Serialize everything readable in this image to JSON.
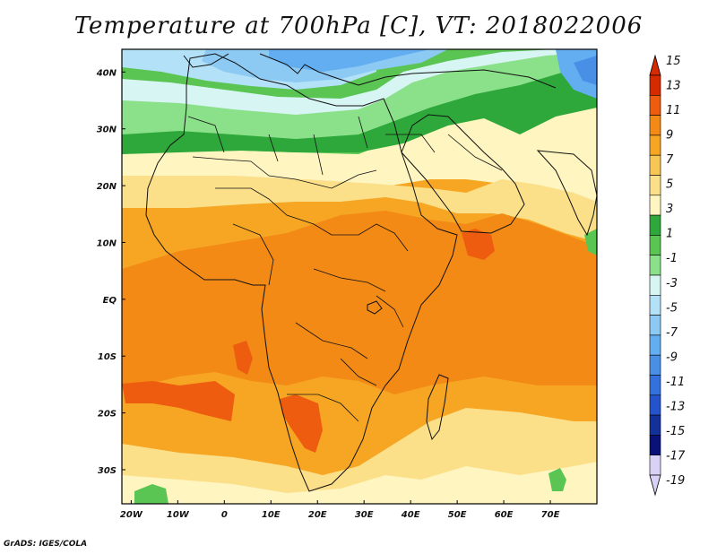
{
  "title": "Temperature at 700hPa [C], VT: 2018022006",
  "credit": "GrADS: IGES/COLA",
  "map": {
    "lat_range": [
      -36,
      44
    ],
    "lon_range": [
      -22,
      80
    ],
    "lat_ticks": [
      {
        "lat": 40,
        "label": "40N"
      },
      {
        "lat": 30,
        "label": "30N"
      },
      {
        "lat": 20,
        "label": "20N"
      },
      {
        "lat": 10,
        "label": "10N"
      },
      {
        "lat": 0,
        "label": "EQ"
      },
      {
        "lat": -10,
        "label": "10S"
      },
      {
        "lat": -20,
        "label": "20S"
      },
      {
        "lat": -30,
        "label": "30S"
      }
    ],
    "lon_ticks": [
      {
        "lon": -20,
        "label": "20W"
      },
      {
        "lon": -10,
        "label": "10W"
      },
      {
        "lon": 0,
        "label": "0"
      },
      {
        "lon": 10,
        "label": "10E"
      },
      {
        "lon": 20,
        "label": "20E"
      },
      {
        "lon": 30,
        "label": "30E"
      },
      {
        "lon": 40,
        "label": "40E"
      },
      {
        "lon": 50,
        "label": "50E"
      },
      {
        "lon": 60,
        "label": "60E"
      },
      {
        "lon": 70,
        "label": "70E"
      }
    ]
  },
  "colorbar": {
    "levels": [
      "15",
      "13",
      "11",
      "9",
      "7",
      "5",
      "3",
      "1",
      "-1",
      "-3",
      "-5",
      "-7",
      "-9",
      "-11",
      "-13",
      "-15",
      "-17",
      "-19"
    ],
    "colors": [
      "#d62a00",
      "#ee5c10",
      "#f38a16",
      "#f6a623",
      "#f8c655",
      "#fbe089",
      "#fef5c0",
      "#2ea83a",
      "#5ac553",
      "#8be08a",
      "#d7f5f2",
      "#b3e1f7",
      "#8ccaf3",
      "#63aef0",
      "#4a8fe6",
      "#3571dd",
      "#2454cb",
      "#123299",
      "#0a127a",
      "#dad2f6"
    ],
    "top_arrow_color": "#d62a00",
    "bottom_arrow_color": "#dad2f6"
  }
}
